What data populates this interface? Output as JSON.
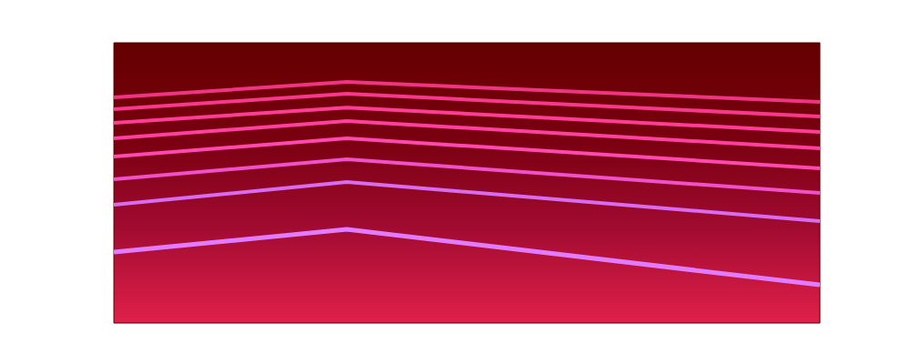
{
  "chart_data": {
    "type": "spectrogram",
    "x": [
      0,
      0.33,
      1
    ],
    "xlim": [
      0,
      1
    ],
    "ylim": [
      0,
      1
    ],
    "tick_labels": false,
    "grid": false,
    "series": [
      {
        "color": "#e27cff",
        "values": [
          0.253,
          0.334,
          0.136
        ]
      },
      {
        "color": "#d86cf0",
        "values": [
          0.422,
          0.503,
          0.364
        ]
      },
      {
        "color": "#f050c8",
        "values": [
          0.513,
          0.584,
          0.464
        ]
      },
      {
        "color": "#ff48b0",
        "values": [
          0.594,
          0.659,
          0.552
        ]
      },
      {
        "color": "#ff40a0",
        "values": [
          0.659,
          0.721,
          0.623
        ]
      },
      {
        "color": "#ff3c96",
        "values": [
          0.714,
          0.769,
          0.682
        ]
      },
      {
        "color": "#f8388c",
        "values": [
          0.763,
          0.818,
          0.737
        ]
      },
      {
        "color": "#f03484",
        "values": [
          0.805,
          0.86,
          0.789
        ]
      }
    ]
  }
}
